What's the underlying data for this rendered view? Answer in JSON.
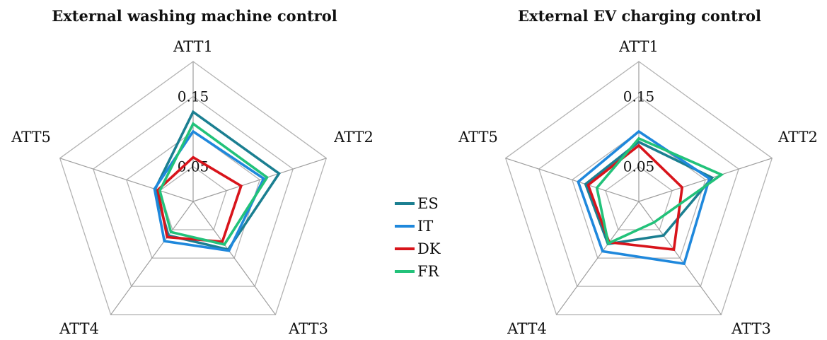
{
  "chart_data": [
    {
      "type": "radar",
      "title": "External washing machine control",
      "axes": [
        "ATT1",
        "ATT2",
        "ATT3",
        "ATT4",
        "ATT5"
      ],
      "rlim": [
        0,
        0.2
      ],
      "ticks": [
        {
          "value": 0.05,
          "label": "0.05"
        },
        {
          "value": 0.15,
          "label": "0.15"
        }
      ],
      "grid": true,
      "series": [
        {
          "name": "ES",
          "values": [
            0.128,
            0.129,
            0.085,
            0.06,
            0.057
          ]
        },
        {
          "name": "IT",
          "values": [
            0.1,
            0.106,
            0.087,
            0.07,
            0.058
          ]
        },
        {
          "name": "DK",
          "values": [
            0.063,
            0.072,
            0.071,
            0.063,
            0.053
          ]
        },
        {
          "name": "FR",
          "values": [
            0.111,
            0.111,
            0.076,
            0.054,
            0.05
          ]
        }
      ]
    },
    {
      "type": "radar",
      "title": "External EV charging control",
      "axes": [
        "ATT1",
        "ATT2",
        "ATT3",
        "ATT4",
        "ATT5"
      ],
      "rlim": [
        0,
        0.2
      ],
      "ticks": [
        {
          "value": 0.05,
          "label": "0.05"
        },
        {
          "value": 0.15,
          "label": "0.15"
        }
      ],
      "grid": true,
      "series": [
        {
          "name": "ES",
          "values": [
            0.085,
            0.11,
            0.06,
            0.075,
            0.08
          ]
        },
        {
          "name": "IT",
          "values": [
            0.1,
            0.106,
            0.11,
            0.088,
            0.091
          ]
        },
        {
          "name": "DK",
          "values": [
            0.08,
            0.065,
            0.085,
            0.072,
            0.076
          ]
        },
        {
          "name": "FR",
          "values": [
            0.09,
            0.124,
            0.037,
            0.074,
            0.063
          ]
        }
      ]
    }
  ],
  "legend": {
    "placement": "center",
    "entries": [
      {
        "name": "ES",
        "color": "#1b7f91"
      },
      {
        "name": "IT",
        "color": "#1f88dc"
      },
      {
        "name": "DK",
        "color": "#d8141b"
      },
      {
        "name": "FR",
        "color": "#22c27a"
      }
    ]
  },
  "colors": {
    "grid": "#b3b3b3",
    "spokes": "#9e9e9e",
    "text": "#111111"
  }
}
